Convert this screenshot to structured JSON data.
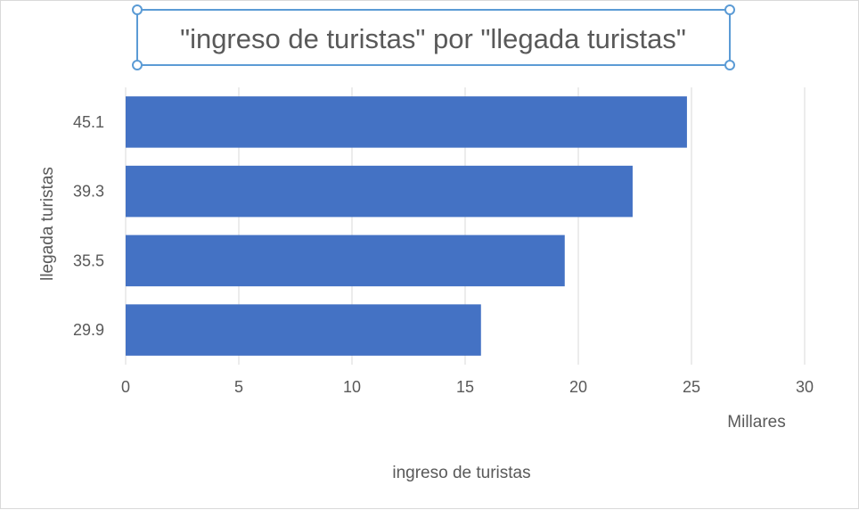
{
  "chart_data": {
    "type": "bar",
    "orientation": "horizontal",
    "title": "\"ingreso de turistas\" por \"llegada turistas\"",
    "xlabel": "ingreso de turistas",
    "ylabel": "llegada turistas",
    "x_display_units": "Millares",
    "categories": [
      "45.1",
      "39.3",
      "35.5",
      "29.9"
    ],
    "values": [
      24800,
      22400,
      19400,
      15700
    ],
    "xlim": [
      0,
      30000
    ],
    "x_ticks": [
      "0",
      "5",
      "10",
      "15",
      "20",
      "25",
      "30"
    ],
    "grid": true,
    "legend": "none",
    "title_selected": true
  },
  "colors": {
    "bar": "#4472c4",
    "grid": "#d9d9d9",
    "text": "#595959",
    "selection": "#5b9bd5"
  }
}
